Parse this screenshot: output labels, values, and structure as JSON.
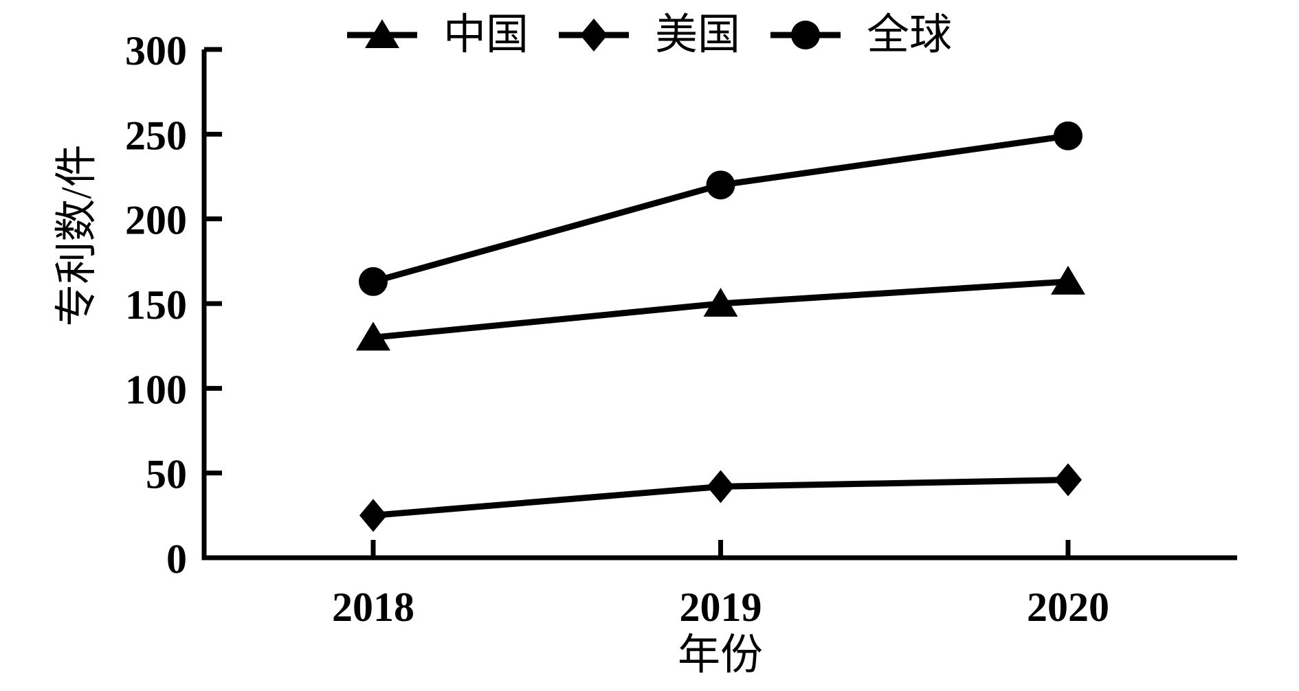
{
  "chart_data": {
    "type": "line",
    "title": "",
    "categories": [
      "2018",
      "2019",
      "2020"
    ],
    "series": [
      {
        "name": "中国",
        "marker": "triangle",
        "values": [
          130,
          150,
          163
        ]
      },
      {
        "name": "美国",
        "marker": "diamond",
        "values": [
          25,
          42,
          46
        ]
      },
      {
        "name": "全球",
        "marker": "circle",
        "values": [
          163,
          220,
          249
        ]
      }
    ],
    "xlabel": "年份",
    "ylabel": "专利数/件",
    "ylim": [
      0,
      300
    ],
    "y_ticks": [
      0,
      50,
      100,
      150,
      200,
      250,
      300
    ],
    "legend_position": "top-center",
    "grid": false,
    "series_color": "#000000",
    "background_color": "#ffffff"
  }
}
